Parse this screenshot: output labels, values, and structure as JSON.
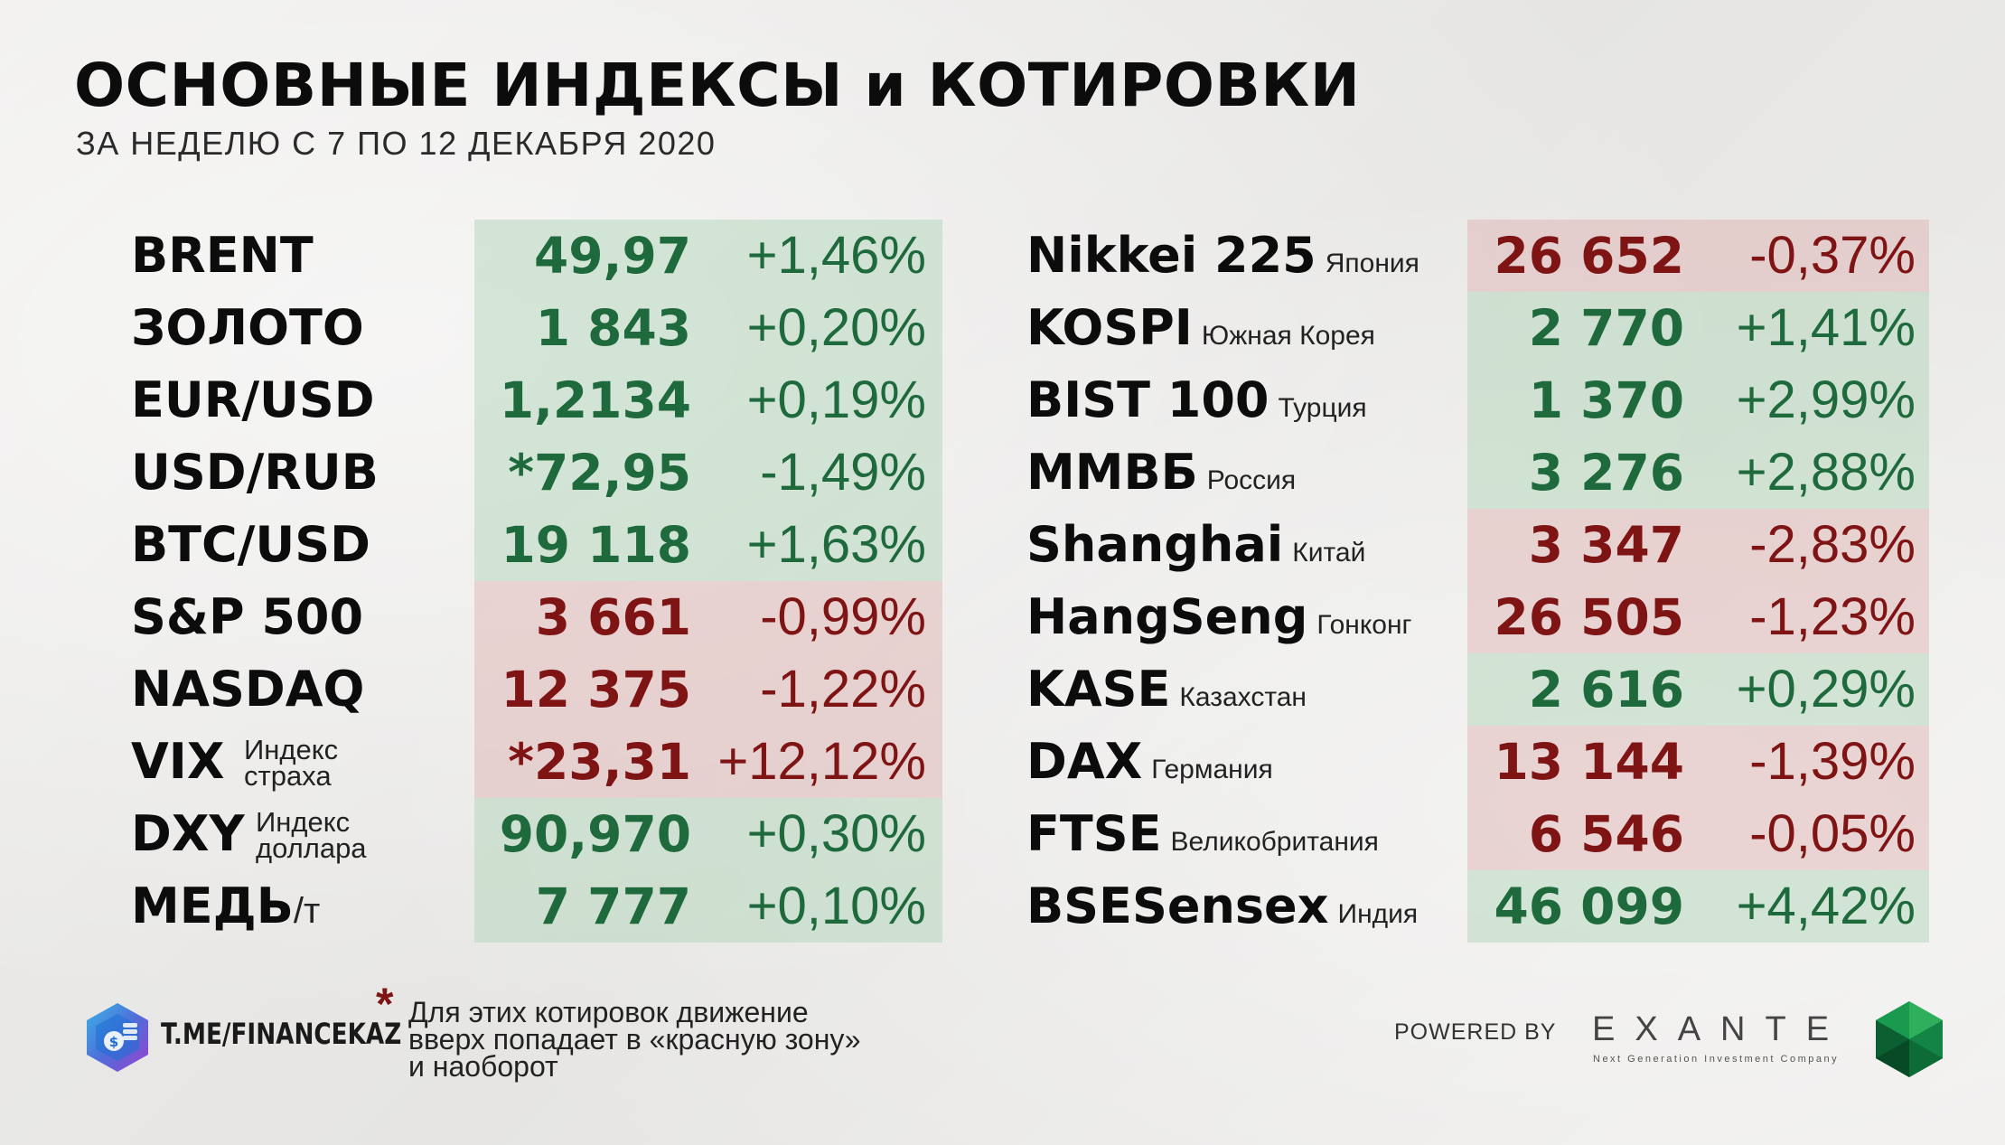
{
  "header": {
    "title": "ОСНОВНЫЕ ИНДЕКСЫ и КОТИРОВКИ",
    "subtitle": "ЗА НЕДЕЛЮ С 7 ПО 12 ДЕКАБРЯ 2020"
  },
  "left_table": [
    {
      "name": "BRENT",
      "value": "49,97",
      "change": "+1,46%",
      "zone": "green"
    },
    {
      "name": "ЗОЛОТО",
      "value": "1 843",
      "change": "+0,20%",
      "zone": "green"
    },
    {
      "name": "EUR/USD",
      "value": "1,2134",
      "change": "+0,19%",
      "zone": "green"
    },
    {
      "name": "USD/RUB",
      "value": "*72,95",
      "change": "-1,49%",
      "zone": "green"
    },
    {
      "name": "BTC/USD",
      "value": "19 118",
      "change": "+1,63%",
      "zone": "green"
    },
    {
      "name": "S&P 500",
      "value": "3 661",
      "change": "-0,99%",
      "zone": "red"
    },
    {
      "name": "NASDAQ",
      "value": "12 375",
      "change": "-1,22%",
      "zone": "red"
    },
    {
      "name": "VIX",
      "note_line1": "Индекс",
      "note_line2": "страха",
      "value": "*23,31",
      "change": "+12,12%",
      "zone": "red"
    },
    {
      "name": "DXY",
      "note_line1": "Индекс",
      "note_line2": "доллара",
      "value": "90,970",
      "change": "+0,30%",
      "zone": "green"
    },
    {
      "name": "МЕДЬ",
      "unit": "/т",
      "value": "7 777",
      "change": "+0,10%",
      "zone": "green"
    }
  ],
  "right_table": [
    {
      "name": "Nikkei 225",
      "country": "Япония",
      "value": "26 652",
      "change": "-0,37%",
      "zone": "red"
    },
    {
      "name": "KOSPI",
      "country": "Южная Корея",
      "value": "2 770",
      "change": "+1,41%",
      "zone": "green"
    },
    {
      "name": "BIST 100",
      "country": "Турция",
      "value": "1 370",
      "change": "+2,99%",
      "zone": "green"
    },
    {
      "name": "ММВБ",
      "country": "Россия",
      "value": "3 276",
      "change": "+2,88%",
      "zone": "green"
    },
    {
      "name": "Shanghai",
      "country": "Китай",
      "value": "3 347",
      "change": "-2,83%",
      "zone": "red"
    },
    {
      "name": "HangSeng",
      "country": "Гонконг",
      "value": "26 505",
      "change": "-1,23%",
      "zone": "red"
    },
    {
      "name": "KASE",
      "country": "Казахстан",
      "value": "2 616",
      "change": "+0,29%",
      "zone": "green"
    },
    {
      "name": "DAX",
      "country": "Германия",
      "value": "13 144",
      "change": "-1,39%",
      "zone": "red"
    },
    {
      "name": "FTSE",
      "country": "Великобритания",
      "value": "6 546",
      "change": "-0,05%",
      "zone": "red"
    },
    {
      "name": "BSESensex",
      "country": "Индия",
      "value": "46 099",
      "change": "+4,42%",
      "zone": "green"
    }
  ],
  "footer": {
    "asterisk": "*",
    "note_line1": "Для этих котировок движение",
    "note_line2": "вверх попадает в «красную зону»",
    "note_line3": "и наоборот",
    "channel": "T.ME/FINANCEKAZ",
    "powered_by": "POWERED BY",
    "brand": "EXANTE",
    "brand_tagline": "Next Generation Investment Company"
  },
  "colors": {
    "green_zone": "#aad2b4",
    "red_zone": "#dcaaaa",
    "positive_text": "#1f6a3c",
    "negative_text": "#7e1414"
  },
  "icons": [
    "telegram-logo-icon",
    "emerald-gem-icon"
  ]
}
